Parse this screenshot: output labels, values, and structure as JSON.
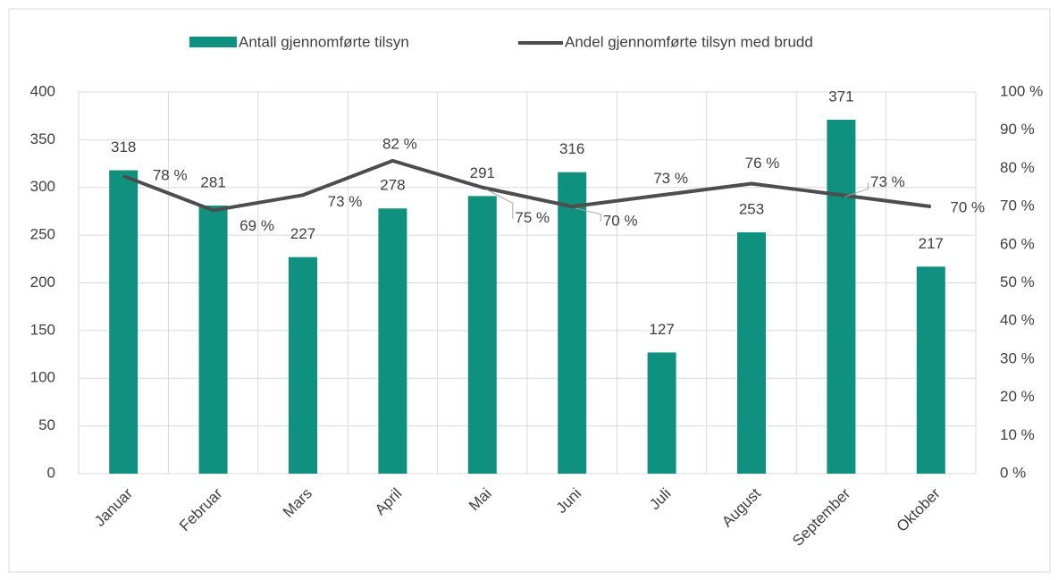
{
  "chart_data": {
    "type": "bar_line",
    "categories": [
      "Januar",
      "Februar",
      "Mars",
      "April",
      "Mai",
      "Juni",
      "Juli",
      "August",
      "September",
      "Oktober"
    ],
    "series": [
      {
        "name": "Antall gjennomførte tilsyn",
        "type": "bar",
        "color": "#10917f",
        "values": [
          318,
          281,
          227,
          278,
          291,
          316,
          127,
          253,
          371,
          217
        ]
      },
      {
        "name": "Andel gjennomførte tilsyn med brudd",
        "type": "line",
        "axis": "y2",
        "color": "#4d4d4d",
        "values": [
          78,
          69,
          73,
          82,
          75,
          70,
          73,
          76,
          73,
          70
        ],
        "value_labels": [
          "78 %",
          "69 %",
          "73 %",
          "82 %",
          "75 %",
          "70 %",
          "73 %",
          "76 %",
          "73 %",
          "70 %"
        ]
      }
    ],
    "ylim": [
      0,
      400
    ],
    "yticks": [
      0,
      50,
      100,
      150,
      200,
      250,
      300,
      350,
      400
    ],
    "y2lim": [
      0,
      100
    ],
    "y2ticks": [
      {
        "value": 0,
        "label": "0 %"
      },
      {
        "value": 10,
        "label": "10 %"
      },
      {
        "value": 20,
        "label": "20 %"
      },
      {
        "value": 30,
        "label": "30 %"
      },
      {
        "value": 40,
        "label": "40 %"
      },
      {
        "value": 50,
        "label": "50 %"
      },
      {
        "value": 60,
        "label": "60 %"
      },
      {
        "value": 70,
        "label": "70 %"
      },
      {
        "value": 80,
        "label": "80 %"
      },
      {
        "value": 90,
        "label": "90 %"
      },
      {
        "value": 100,
        "label": "100 %"
      }
    ],
    "grid": true,
    "legend": "top"
  }
}
